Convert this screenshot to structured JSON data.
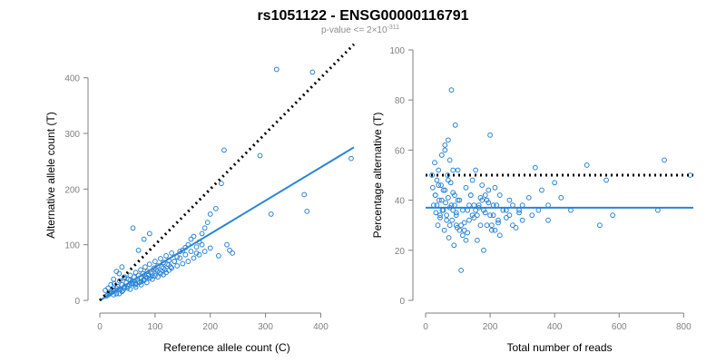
{
  "header": {
    "title": "rs1051122 - ENSG00000116791",
    "subtitle_prefix": "p-value <= 2×10",
    "subtitle_exponent": "-311"
  },
  "chart_data": [
    {
      "type": "scatter",
      "xlabel": "Reference allele count (C)",
      "ylabel": "Alternative allele count (T)",
      "xlim": [
        0,
        460
      ],
      "ylim": [
        0,
        450
      ],
      "xticks": [
        "0",
        "100",
        "200",
        "300",
        "400"
      ],
      "yticks": [
        "0",
        "100",
        "200",
        "300",
        "400"
      ],
      "grid": false,
      "point_color": "#2a84d6",
      "points": {
        "x": [
          10,
          12,
          15,
          18,
          20,
          22,
          25,
          26,
          28,
          30,
          32,
          35,
          36,
          38,
          40,
          42,
          44,
          45,
          48,
          50,
          52,
          54,
          55,
          58,
          60,
          62,
          64,
          65,
          68,
          70,
          72,
          74,
          75,
          78,
          80,
          82,
          84,
          86,
          88,
          90,
          92,
          95,
          98,
          100,
          102,
          105,
          108,
          110,
          112,
          115,
          118,
          120,
          122,
          125,
          128,
          130,
          135,
          140,
          145,
          150,
          155,
          160,
          165,
          170,
          175,
          180,
          185,
          190,
          195,
          200,
          210,
          215,
          220,
          225,
          230,
          235,
          240,
          290,
          310,
          320,
          370,
          375,
          385,
          455,
          15,
          20,
          25,
          30,
          35,
          40,
          45,
          50,
          55,
          60,
          65,
          70,
          75,
          80,
          85,
          90,
          95,
          100,
          105,
          110,
          115,
          120,
          125,
          130,
          140,
          150,
          160,
          170,
          180,
          190,
          200,
          60,
          70,
          80,
          90,
          40,
          30,
          35,
          25,
          45,
          55,
          65,
          75,
          85,
          95,
          105,
          115,
          125,
          135,
          145,
          155,
          165,
          175,
          185
        ],
        "y": [
          18,
          8,
          22,
          12,
          28,
          15,
          10,
          30,
          18,
          22,
          25,
          12,
          35,
          20,
          28,
          18,
          40,
          25,
          32,
          22,
          38,
          28,
          45,
          30,
          35,
          42,
          28,
          50,
          38,
          45,
          32,
          55,
          40,
          48,
          38,
          60,
          42,
          52,
          45,
          65,
          50,
          48,
          58,
          70,
          55,
          62,
          50,
          75,
          60,
          68,
          55,
          80,
          65,
          72,
          60,
          85,
          70,
          78,
          88,
          90,
          95,
          100,
          110,
          115,
          85,
          105,
          120,
          130,
          140,
          155,
          165,
          80,
          210,
          270,
          100,
          90,
          85,
          260,
          155,
          415,
          190,
          160,
          410,
          255,
          10,
          14,
          18,
          12,
          20,
          16,
          22,
          26,
          20,
          30,
          24,
          34,
          28,
          36,
          32,
          40,
          38,
          44,
          42,
          48,
          46,
          50,
          54,
          58,
          62,
          66,
          70,
          76,
          82,
          88,
          94,
          130,
          90,
          110,
          120,
          60,
          52,
          48,
          38,
          42,
          36,
          30,
          34,
          40,
          44,
          52,
          58,
          64,
          70,
          76,
          82,
          88,
          96,
          100
        ]
      },
      "fit_line": {
        "x": [
          0,
          460
        ],
        "y": [
          0,
          275
        ]
      },
      "reference_line": {
        "x": [
          0,
          460
        ],
        "y": [
          0,
          460
        ]
      }
    },
    {
      "type": "scatter",
      "xlabel": "Total number of reads",
      "ylabel": "Percentage alternative (T)",
      "xlim": [
        0,
        830
      ],
      "ylim": [
        0,
        100
      ],
      "xticks": [
        "0",
        "200",
        "400",
        "600",
        "800"
      ],
      "yticks": [
        "0",
        "20",
        "40",
        "60",
        "80",
        "100"
      ],
      "grid": false,
      "point_color": "#2a84d6",
      "points": {
        "x": [
          20,
          22,
          25,
          28,
          30,
          32,
          35,
          38,
          40,
          42,
          45,
          48,
          50,
          52,
          55,
          58,
          60,
          62,
          65,
          68,
          70,
          72,
          75,
          78,
          80,
          82,
          85,
          88,
          90,
          92,
          95,
          98,
          100,
          105,
          110,
          115,
          120,
          125,
          130,
          135,
          140,
          145,
          150,
          155,
          160,
          165,
          170,
          175,
          180,
          185,
          190,
          195,
          200,
          205,
          210,
          215,
          220,
          225,
          230,
          240,
          250,
          260,
          270,
          280,
          290,
          300,
          320,
          340,
          360,
          380,
          400,
          420,
          450,
          500,
          540,
          560,
          580,
          720,
          740,
          820,
          30,
          35,
          40,
          45,
          50,
          55,
          60,
          65,
          70,
          75,
          80,
          85,
          90,
          95,
          100,
          110,
          120,
          130,
          140,
          150,
          160,
          170,
          180,
          190,
          200,
          210,
          225,
          250,
          270,
          300,
          330,
          350,
          380,
          60,
          70,
          75,
          85,
          95,
          105,
          115,
          125,
          135,
          145,
          155,
          165,
          175,
          185,
          195,
          205,
          215,
          230,
          260,
          290
        ],
        "y": [
          50,
          45,
          38,
          55,
          42,
          35,
          48,
          30,
          52,
          40,
          33,
          46,
          58,
          36,
          44,
          28,
          62,
          39,
          34,
          50,
          41,
          25,
          37,
          47,
          84,
          32,
          43,
          22,
          38,
          70,
          35,
          29,
          52,
          40,
          12,
          36,
          31,
          45,
          27,
          38,
          42,
          48,
          33,
          52,
          24,
          37,
          41,
          46,
          20,
          35,
          30,
          39,
          66,
          28,
          34,
          45,
          38,
          31,
          42,
          36,
          33,
          40,
          38,
          29,
          35,
          32,
          41,
          53,
          44,
          38,
          47,
          41,
          36,
          54,
          30,
          48,
          34,
          36,
          56,
          50,
          42,
          38,
          46,
          34,
          40,
          36,
          44,
          32,
          48,
          30,
          38,
          36,
          42,
          34,
          40,
          30,
          28,
          36,
          42,
          38,
          34,
          30,
          36,
          40,
          34,
          38,
          32,
          36,
          30,
          38,
          34,
          36,
          32,
          60,
          64,
          56,
          52,
          30,
          28,
          26,
          24,
          32,
          34,
          36,
          38,
          40,
          42,
          44,
          30,
          28,
          26,
          34,
          36
        ]
      },
      "fit_line": {
        "x": [
          0,
          830
        ],
        "y": [
          37,
          37
        ]
      },
      "reference_line": {
        "x": [
          0,
          830
        ],
        "y": [
          50,
          50
        ]
      }
    }
  ]
}
